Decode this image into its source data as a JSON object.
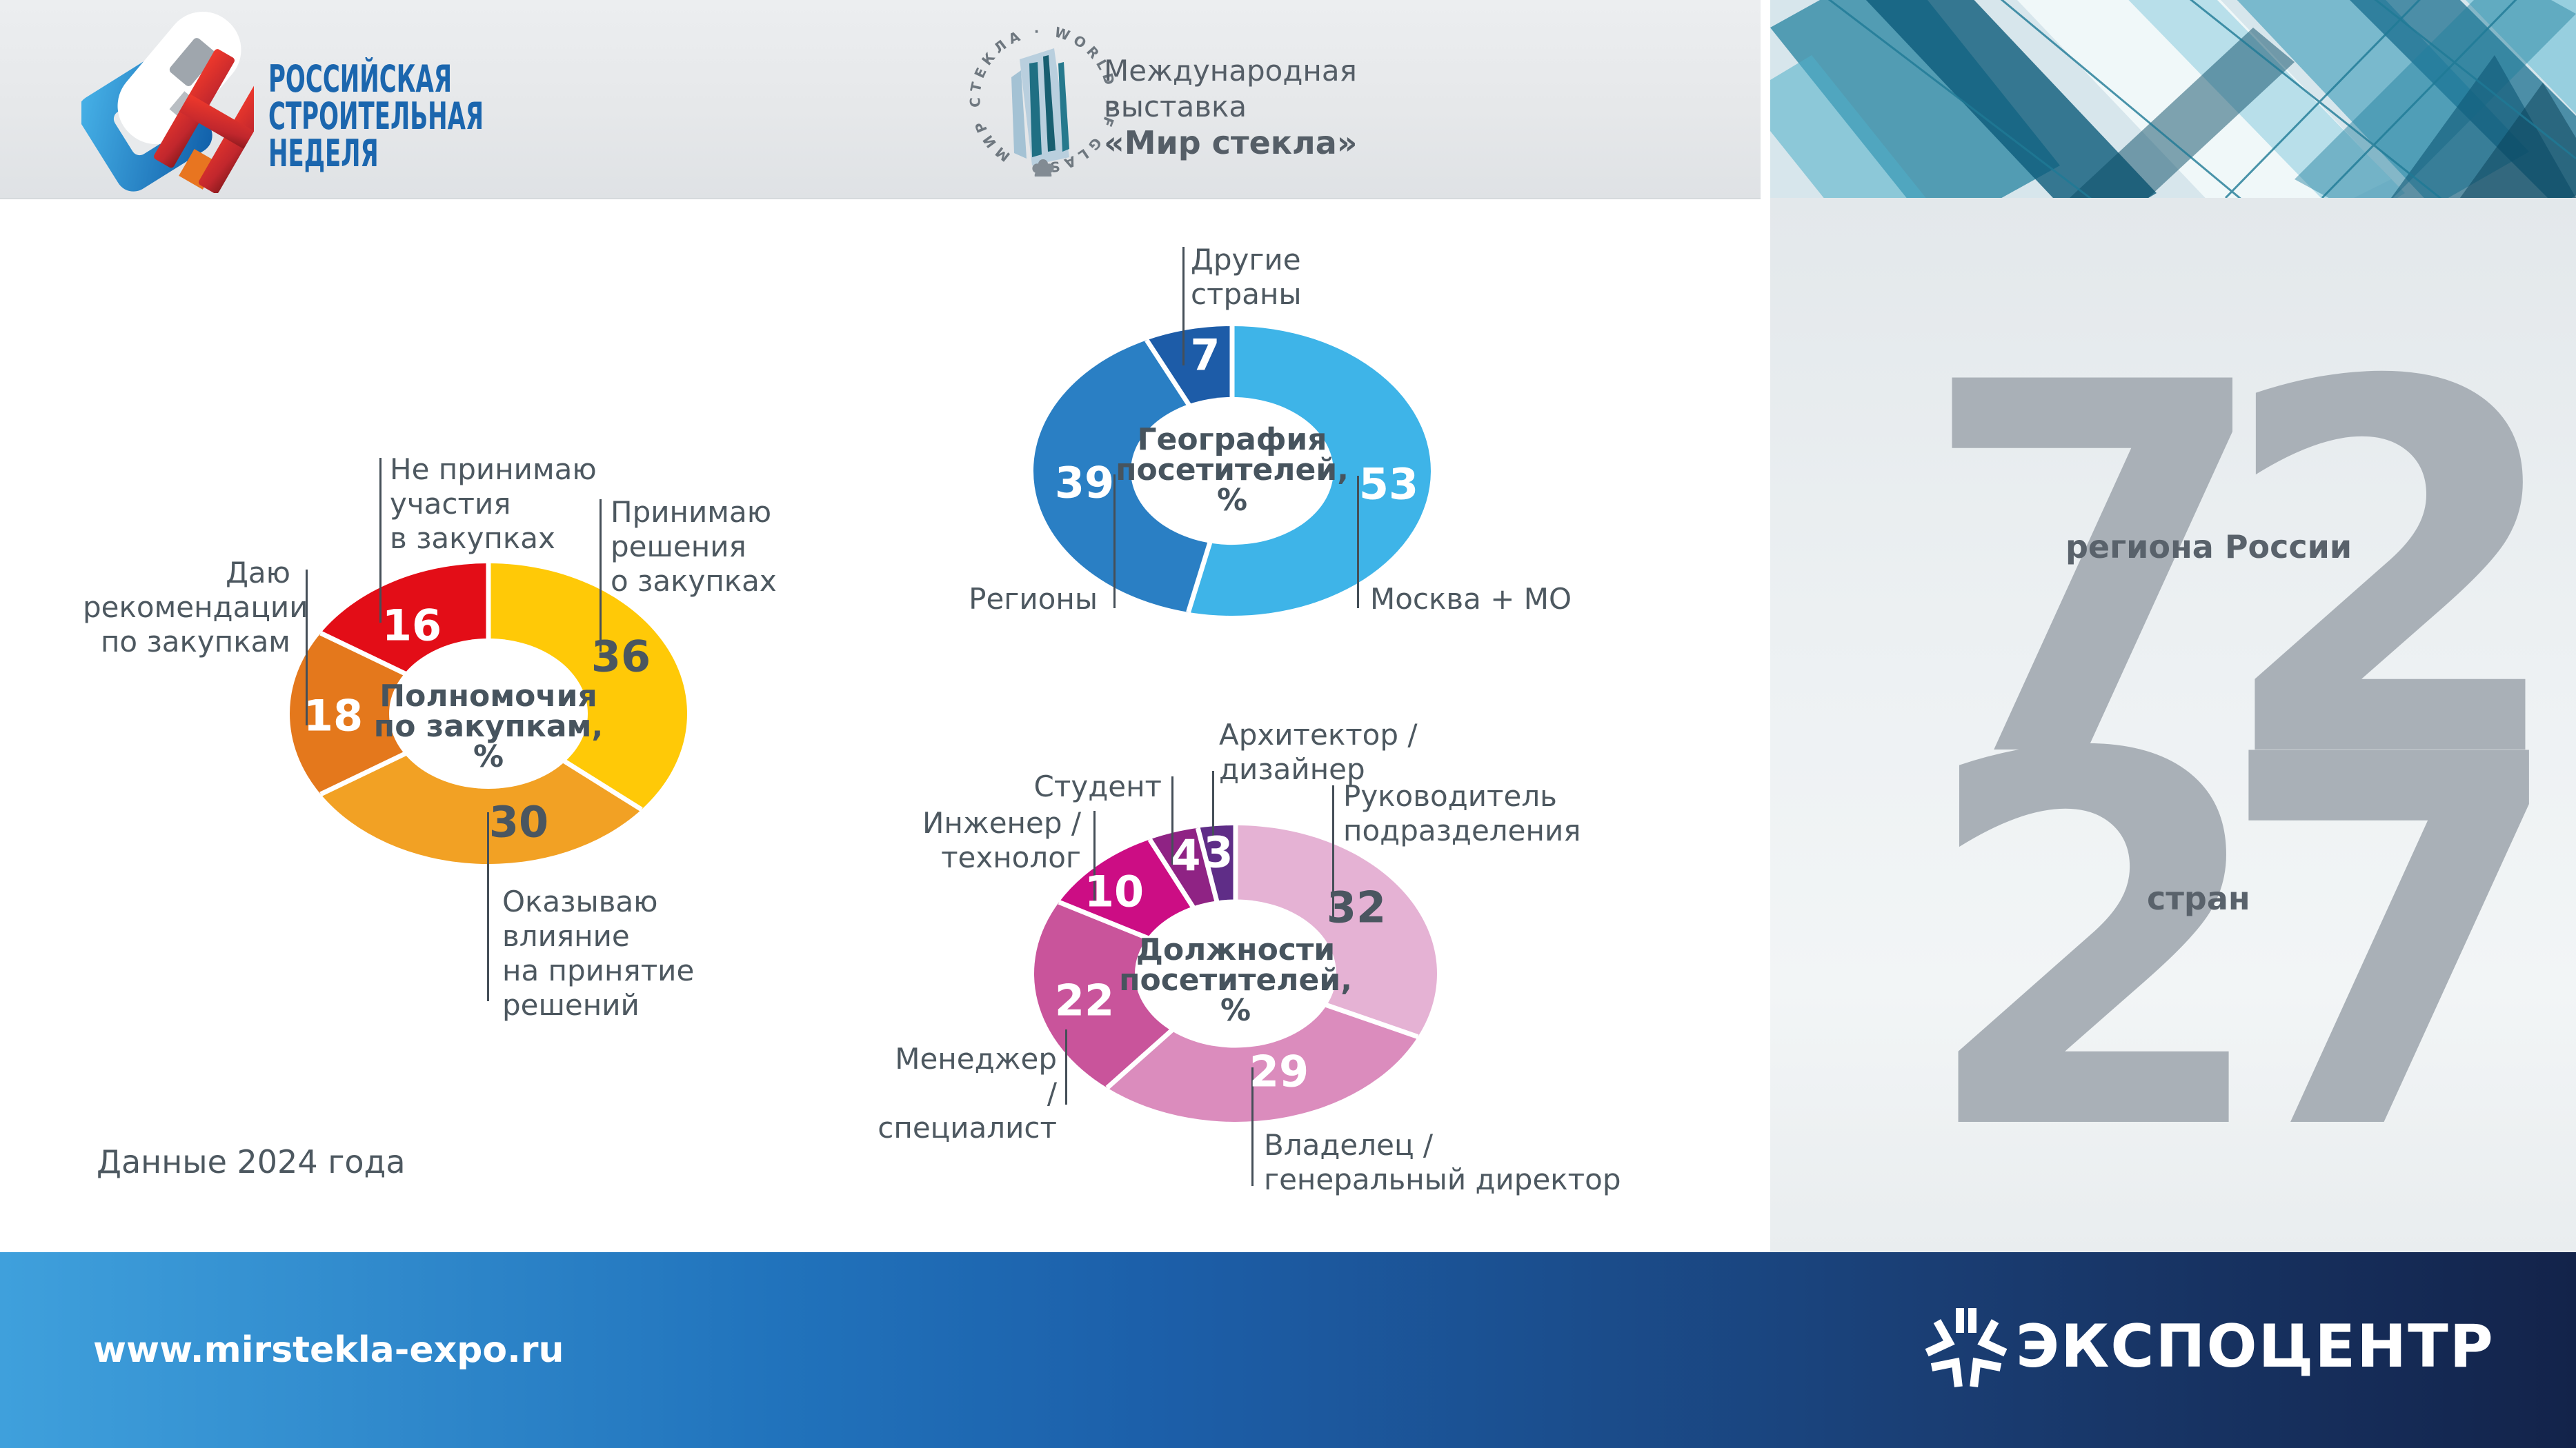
{
  "header": {
    "rsn_wordmark": "РОССИЙСКАЯ\nСТРОИТЕЛЬНАЯ\nНЕДЕЛЯ",
    "glass_ring_text": "МИР СТЕКЛА · WORLD OF GLASS",
    "expo_line1": "Международная",
    "expo_line2": "выставка",
    "expo_line3": "«Мир стекла»"
  },
  "chart_data": [
    {
      "type": "donut",
      "title": "Полномочия\nпо закупкам,\n%",
      "unit": "%",
      "slices": [
        {
          "label": "Принимаю\nрешения\nо закупках",
          "value": 36,
          "color": "#FFC907",
          "value_text_color": "#4A5660"
        },
        {
          "label": "Оказываю\nвлияние\nна принятие\nрешений",
          "value": 30,
          "color": "#F2A124",
          "value_text_color": "#4A5660"
        },
        {
          "label": "Даю\nрекомендации\nпо закупкам",
          "value": 18,
          "color": "#E4781C",
          "value_text_color": "#FFFFFF"
        },
        {
          "label": "Не принимаю\nучастия\nв закупках",
          "value": 16,
          "color": "#E30D17",
          "value_text_color": "#FFFFFF"
        }
      ]
    },
    {
      "type": "donut",
      "title": "География\nпосетителей,\n%",
      "unit": "%",
      "slices": [
        {
          "label": "Москва + МО",
          "value": 53,
          "color": "#3EB4E8",
          "value_text_color": "#FFFFFF"
        },
        {
          "label": "Регионы",
          "value": 39,
          "color": "#2A7FC4",
          "value_text_color": "#FFFFFF"
        },
        {
          "label": "Другие\nстраны",
          "value": 7,
          "color": "#1D5CA8",
          "value_text_color": "#FFFFFF"
        }
      ]
    },
    {
      "type": "donut",
      "title": "Должности\nпосетителей,\n%",
      "unit": "%",
      "slices": [
        {
          "label": "Руководитель\nподразделения",
          "value": 32,
          "color": "#E5B2D4",
          "value_text_color": "#4A5660"
        },
        {
          "label": "Владелец /\nгенеральный директор",
          "value": 29,
          "color": "#DB8CBD",
          "value_text_color": "#FFFFFF"
        },
        {
          "label": "Менеджер /\nспециалист",
          "value": 22,
          "color": "#C9549B",
          "value_text_color": "#FFFFFF"
        },
        {
          "label": "Инженер /\nтехнолог",
          "value": 10,
          "color": "#CC0D84",
          "value_text_color": "#FFFFFF"
        },
        {
          "label": "Студент",
          "value": 4,
          "color": "#8F2384",
          "value_text_color": "#FFFFFF"
        },
        {
          "label": "Архитектор /\nдизайнер",
          "value": 3,
          "color": "#5F2D87",
          "value_text_color": "#FFFFFF"
        }
      ]
    }
  ],
  "footnote": "Данные 2024 года",
  "stats": [
    {
      "number": "72",
      "label": "региона России"
    },
    {
      "number": "27",
      "label": "стран"
    }
  ],
  "footer": {
    "url": "www.mirstekla-expo.ru",
    "brand": "ЭКСПОЦЕНТР"
  }
}
